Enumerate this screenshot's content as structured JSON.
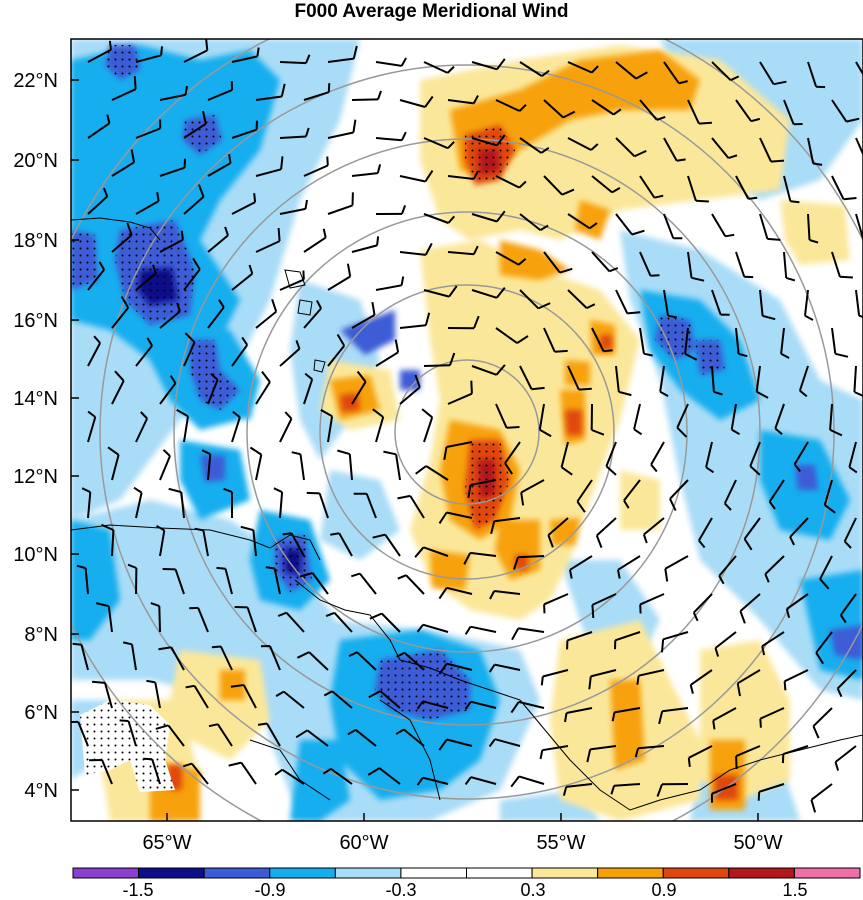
{
  "title": "F000 Average Meridional Wind",
  "lat_labels": [
    "22°N",
    "20°N",
    "18°N",
    "16°N",
    "14°N",
    "12°N",
    "10°N",
    "8°N",
    "6°N",
    "4°N"
  ],
  "lon_labels": [
    "65°W",
    "60°W",
    "55°W",
    "50°W"
  ],
  "colorbar": {
    "labels": [
      "-1.5",
      "-0.9",
      "-0.3",
      "0.3",
      "0.9",
      "1.5"
    ],
    "colors": [
      "#8b3fd1",
      "#0b0f8c",
      "#3c5bd6",
      "#12aeee",
      "#a9dcf7",
      "#ffffff",
      "#ffffff",
      "#fbe79a",
      "#f7a10a",
      "#e0460f",
      "#b2181b",
      "#ef6fa8"
    ]
  },
  "map": {
    "lon_range": [
      -67.5,
      -47.5
    ],
    "lat_range": [
      3.4,
      23.1
    ],
    "center": [
      -56.5,
      13.2
    ],
    "features": [
      "meridional wind shading",
      "wind barbs",
      "range rings",
      "coastlines",
      "stippled significance"
    ]
  }
}
